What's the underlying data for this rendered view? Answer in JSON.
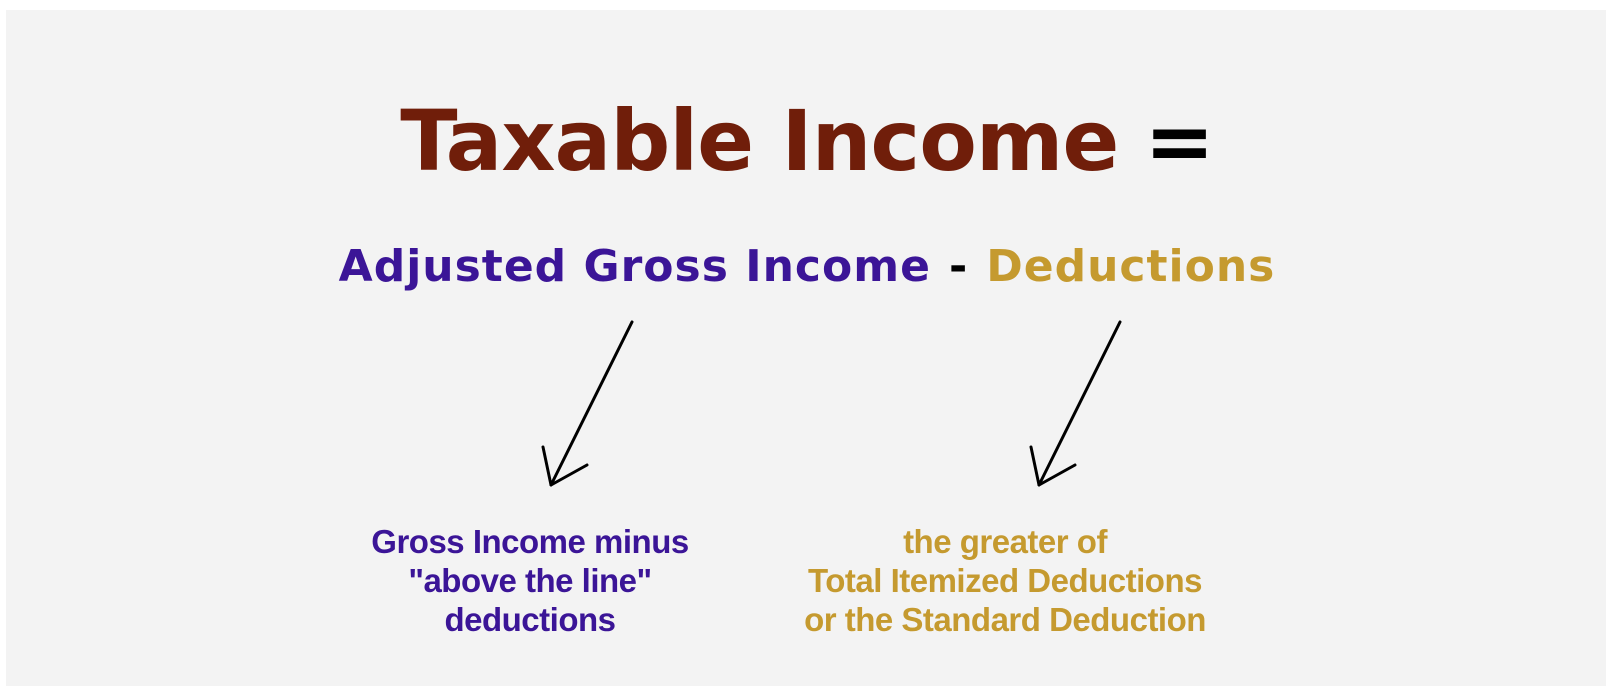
{
  "title": {
    "text": "Taxable Income",
    "equals": "="
  },
  "formula": {
    "term_left": "Adjusted Gross Income",
    "operator": "-",
    "term_right": "Deductions"
  },
  "notes": {
    "left": {
      "line1": "Gross Income minus",
      "line2": "\"above the line\"",
      "line3": "deductions"
    },
    "right": {
      "line1": "the greater of",
      "line2": "Total Itemized Deductions",
      "line3": "or the Standard Deduction"
    }
  },
  "colors": {
    "title": "#701e0a",
    "agi": "#3b1597",
    "deductions": "#c59a2f",
    "background": "#f3f3f3"
  }
}
